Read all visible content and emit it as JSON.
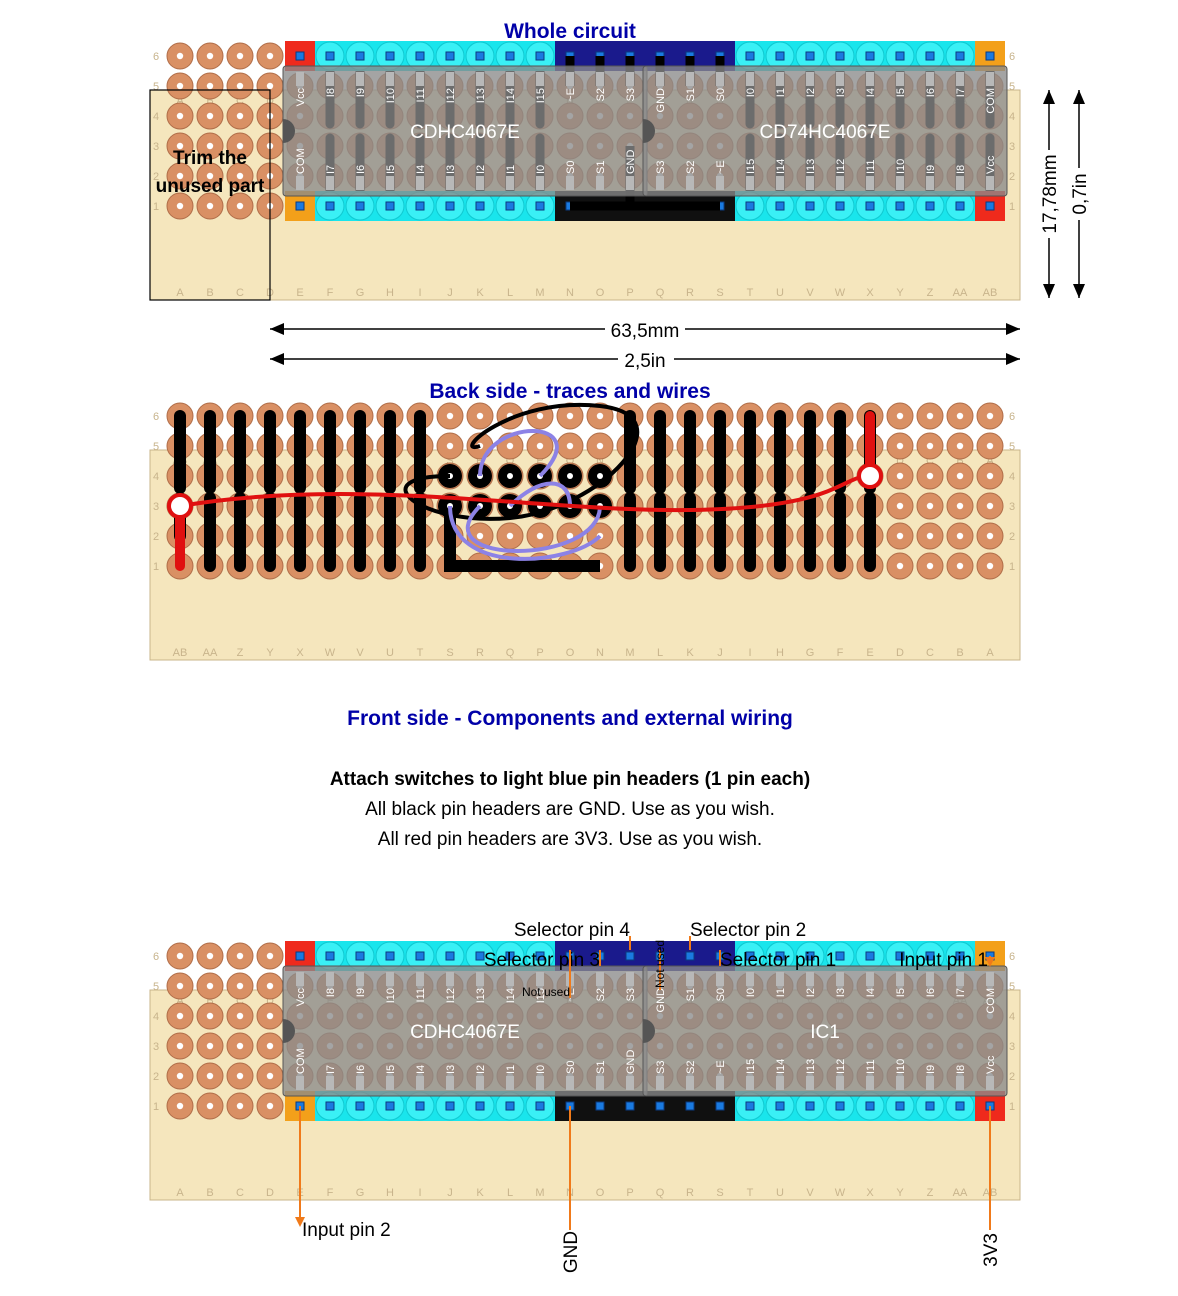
{
  "titles": {
    "whole": "Whole circuit",
    "back": "Back side - traces and wires",
    "front": "Front side - Components and external wiring"
  },
  "notes": {
    "line1": "Attach switches to light blue pin headers (1 pin each)",
    "line2": "All black pin headers are GND. Use as you wish.",
    "line3": "All red pin headers are 3V3. Use as you wish."
  },
  "trim_label": [
    "Trim the",
    "unused part"
  ],
  "dimensions": {
    "width_mm": "63,5mm",
    "width_in": "2,5in",
    "height_mm": "17,78mm",
    "height_in": "0,7in"
  },
  "columns": [
    "A",
    "B",
    "C",
    "D",
    "E",
    "F",
    "G",
    "H",
    "I",
    "J",
    "K",
    "L",
    "M",
    "N",
    "O",
    "P",
    "Q",
    "R",
    "S",
    "T",
    "U",
    "V",
    "W",
    "X",
    "Y",
    "Z",
    "AA",
    "AB"
  ],
  "rows": [
    "1",
    "2",
    "3",
    "4",
    "5",
    "6"
  ],
  "chip1": {
    "name": "CDHC4067E",
    "top_pins": [
      "Vcc",
      "I8",
      "I9",
      "I10",
      "I11",
      "I12",
      "I13",
      "I14",
      "I15",
      "~E",
      "S2",
      "S3"
    ],
    "bottom_pins": [
      "COM",
      "I7",
      "I6",
      "I5",
      "I4",
      "I3",
      "I2",
      "I1",
      "I0",
      "S0",
      "S1",
      "GND"
    ]
  },
  "chip2": {
    "name_whole": "CD74HC4067E",
    "name_front": "IC1",
    "top_pins": [
      "GND",
      "S1",
      "S0",
      "I0",
      "I1",
      "I2",
      "I3",
      "I4",
      "I5",
      "I6",
      "I7",
      "COM"
    ],
    "bottom_pins": [
      "S3",
      "S2",
      "~E",
      "I15",
      "I14",
      "I13",
      "I12",
      "I11",
      "I10",
      "I9",
      "I8",
      "Vcc"
    ]
  },
  "callouts": {
    "sel4": "Selector pin 4",
    "sel3": "Selector pin 3",
    "sel2": "Selector pin 2",
    "sel1": "Selector pin 1",
    "input1": "Input pin 1",
    "input2": "Input pin 2",
    "not_used": "Not used",
    "gnd": "GND",
    "v33": "3V3"
  },
  "colors": {
    "board": "#f5e6bd",
    "pad": "#d99064",
    "cyan": "#19e5ec",
    "navy": "#1a1a8c",
    "red": "#ef2a1c",
    "orange": "#f3a01a",
    "trace": "#000000",
    "wire_red": "#e01010",
    "wire_purple": "#8c82e6",
    "title": "#0000a8",
    "arrow": "#f07a1a"
  }
}
